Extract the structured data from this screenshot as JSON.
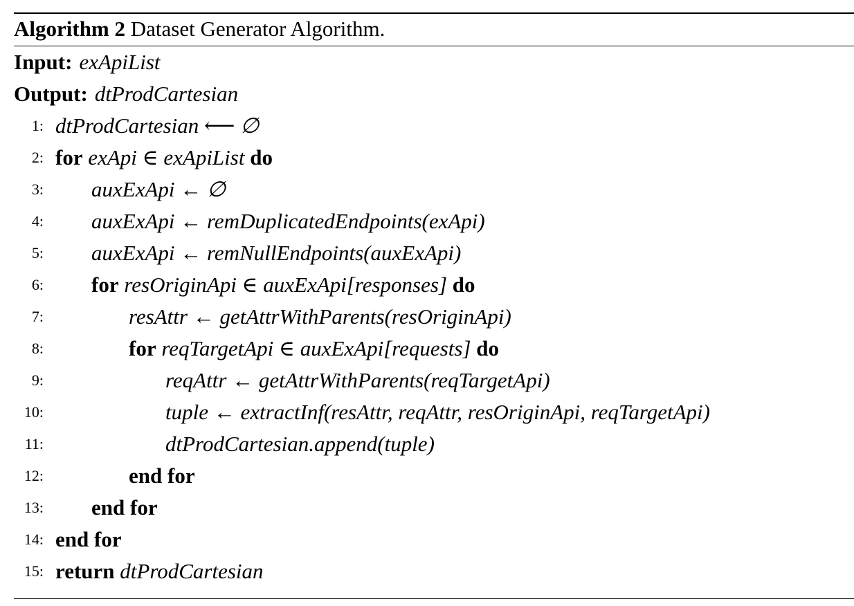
{
  "caption": {
    "label": "Algorithm 2",
    "title": "Dataset Generator Algorithm."
  },
  "input": {
    "keyword": "Input:",
    "value": "exApiList"
  },
  "output": {
    "keyword": "Output:",
    "value": "dtProdCartesian"
  },
  "lines": [
    {
      "num": "1:",
      "parts": [
        "dtProdCartesian ⟵ ∅"
      ]
    },
    {
      "num": "2:",
      "parts": [
        "for",
        " exApi ∈ exApiList ",
        "do"
      ]
    },
    {
      "num": "3:",
      "parts": [
        "auxExApi ← ∅"
      ]
    },
    {
      "num": "4:",
      "parts": [
        "auxExApi ← remDuplicatedEndpoints(exApi)"
      ]
    },
    {
      "num": "5:",
      "parts": [
        "auxExApi ← remNullEndpoints(auxExApi)"
      ]
    },
    {
      "num": "6:",
      "parts": [
        "for",
        " resOriginApi ∈ auxExApi[responses] ",
        "do"
      ]
    },
    {
      "num": "7:",
      "parts": [
        "resAttr ← getAttrWithParents(resOriginApi)"
      ]
    },
    {
      "num": "8:",
      "parts": [
        "for",
        " reqTargetApi ∈ auxExApi[requests] ",
        "do"
      ]
    },
    {
      "num": "9:",
      "parts": [
        "reqAttr ← getAttrWithParents(reqTargetApi)"
      ]
    },
    {
      "num": "10:",
      "parts": [
        "tuple ← extractInf(resAttr, reqAttr, resOriginApi, reqTargetApi)"
      ]
    },
    {
      "num": "11:",
      "parts": [
        "dtProdCartesian.append(tuple)"
      ]
    },
    {
      "num": "12:",
      "parts": [
        "end for"
      ]
    },
    {
      "num": "13:",
      "parts": [
        "end for"
      ]
    },
    {
      "num": "14:",
      "parts": [
        "end for"
      ]
    },
    {
      "num": "15:",
      "parts": [
        "return",
        " dtProdCartesian"
      ]
    }
  ]
}
